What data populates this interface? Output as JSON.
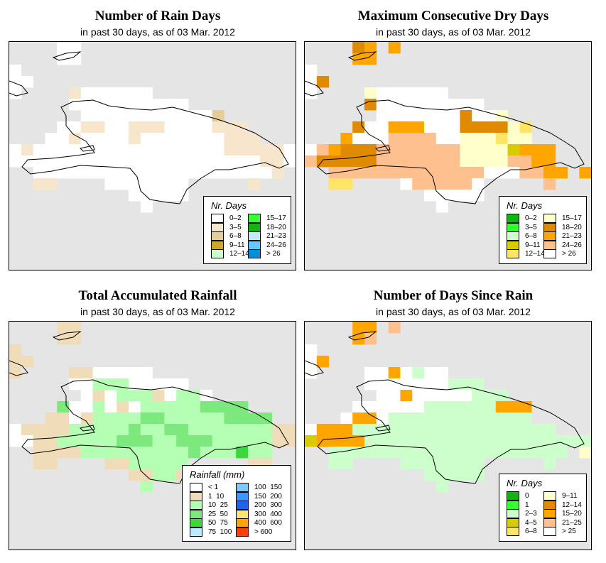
{
  "panels": [
    {
      "title": "Number of Rain Days",
      "subtitle": "in past 30 days, as of  03 Mar. 2012",
      "legend": {
        "title": "Nr. Days",
        "items": [
          [
            "0–2",
            "#ffffff"
          ],
          [
            "3–5",
            "#f7e6cc"
          ],
          [
            "6–8",
            "#e6cc99"
          ],
          [
            "9–11",
            "#cca633"
          ],
          [
            "12–14",
            "#ccffcc"
          ],
          [
            "15–17",
            "#33ff33"
          ],
          [
            "18–20",
            "#0cb80c"
          ],
          [
            "21–23",
            "#c0ebff"
          ],
          [
            "24–26",
            "#66c8ff"
          ],
          [
            "> 26",
            "#0090d8"
          ]
        ]
      },
      "grid": [
        "....00..................",
        "....00..................",
        "0.......................",
        "00......................",
        "0....1000000............",
        ".....0000000000.........",
        "......000000000002......",
        "....0011001110000111....",
        "...001000010000000111...",
        "010000000000000000111110",
        "000000000000000000000110",
        "..000000000000000000001.",
        "..11....0000000.....1...",
        "..........00000.........",
        "...........0............"
      ]
    },
    {
      "title": "Maximum Consecutive Dry Days",
      "subtitle": "in past 30 days, as of  03 Mar. 2012",
      "legend": {
        "title": "Nr. Days",
        "items": [
          [
            "0–2",
            "#0cb80c"
          ],
          [
            "3–5",
            "#33ff33"
          ],
          [
            "6–8",
            "#ccffcc"
          ],
          [
            "9–11",
            "#d8cc00"
          ],
          [
            "12–14",
            "#ffe566"
          ],
          [
            "15–17",
            "#ffffcc"
          ],
          [
            "18–20",
            "#e08a00"
          ],
          [
            "21–23",
            "#ffa500"
          ],
          [
            "24–26",
            "#ffc090"
          ],
          [
            "> 26",
            "#ffffff"
          ]
        ]
      },
      "grid": [
        "....67.7................",
        "....77..................",
        "9.......................",
        "96......................",
        "9....5999999............",
        ".....6999999999.........",
        "......99999996995.......",
        "....699777999666654.....",
        "...7999888899555455.....",
        "987666888888855553777...",
        "866666888888855558877...",
        "..88888888888889998877.7",
        "..44....9888889.....8...",
        "..........99999.........",
        "...........9............"
      ]
    },
    {
      "title": "Total Accumulated Rainfall",
      "subtitle": "in past 30 days, as of  03 Mar. 2012",
      "legend": {
        "title": "Rainfall (mm)",
        "items": [
          [
            "< 1",
            "#ffffff"
          ],
          [
            "1  10",
            "#f0dcb8"
          ],
          [
            "10  25",
            "#b5ffb5"
          ],
          [
            "25  50",
            "#7de87d"
          ],
          [
            "50  75",
            "#3dd63d"
          ],
          [
            "75  100",
            "#b8ecff"
          ],
          [
            "100  150",
            "#7cc8ff"
          ],
          [
            "150  200",
            "#3c96ff"
          ],
          [
            "200  300",
            "#1e64e6"
          ],
          [
            "300  400",
            "#ffe66e"
          ],
          [
            "400  600",
            "#ffa500"
          ],
          [
            "> 600",
            "#ff4000"
          ]
        ]
      },
      "grid": [
        "....11..................",
        "....11..................",
        "1.......................",
        "11......................",
        "1....1100000............",
        ".....0022200000.........",
        "......01022210220.......",
        "....3002010222223333....",
        "...1101222233222223333..",
        "011112222232233222222211",
        "001122222333223332222211",
        "..11112222222223222422..",
        "..11....1122222.....11..",
        "..........11221.........",
        "...........2............"
      ]
    },
    {
      "title": "Number of Days Since Rain",
      "subtitle": "in past 30 days, as of  03 Mar. 2012",
      "legend": {
        "title": "Nr. Days",
        "items": [
          [
            "0",
            "#0cb80c"
          ],
          [
            "1",
            "#33ff33"
          ],
          [
            "2–3",
            "#ccffcc"
          ],
          [
            "4–5",
            "#d8cc00"
          ],
          [
            "6–8",
            "#ffe566"
          ],
          [
            "9–11",
            "#ffffcc"
          ],
          [
            "12–14",
            "#e08a00"
          ],
          [
            "15–20",
            "#ffa500"
          ],
          [
            "21–25",
            "#ffc090"
          ],
          [
            "> 25",
            "#ffffff"
          ]
        ]
      },
      "grid": [
        "....77.8................",
        "....78..................",
        "9.......................",
        "97......................",
        "9....9979299............",
        ".....9999999222.........",
        "......99799999222.......",
        "....999999222222777.....",
        "...9779222222222222.....",
        "977722222222222222222...",
        "377772222222222222222222",
        "..22222222222222222222.5",
        "..22....2222222.....2...",
        "..........22222.........",
        "...........2............"
      ]
    }
  ]
}
